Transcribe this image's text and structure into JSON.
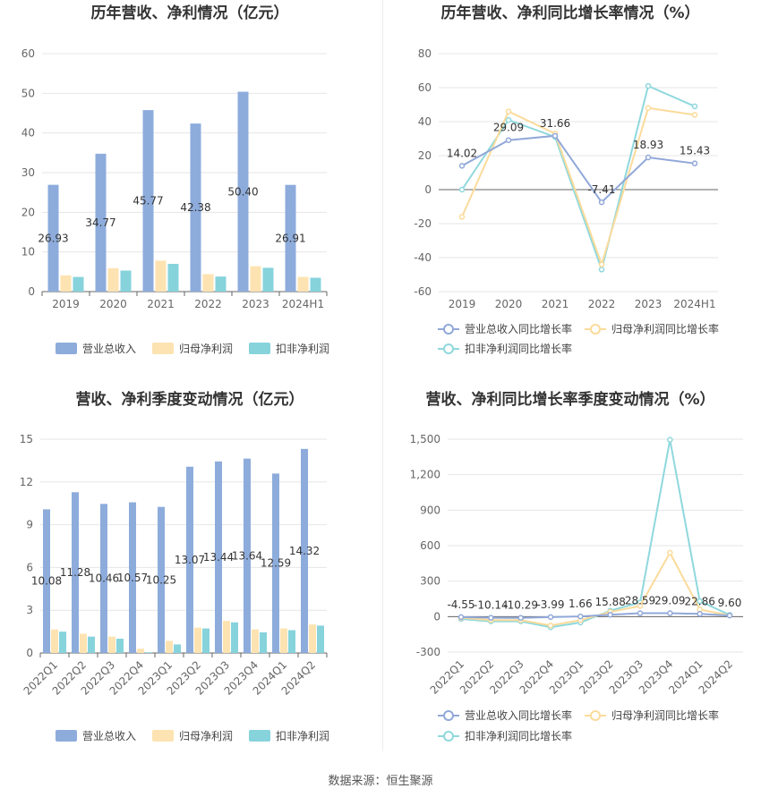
{
  "footer": {
    "source": "数据来源：恒生聚源"
  },
  "colors": {
    "revenue": "#8dacdc",
    "net_profit": "#fde3b1",
    "deducted_profit": "#86d3dc",
    "revenue_line": "#91a8d8",
    "net_profit_line": "#fbdb9b",
    "deducted_profit_line": "#8fd8dd"
  },
  "chart_data": [
    {
      "type": "bar",
      "title": "历年营收、净利情况（亿元）",
      "categories": [
        "2019",
        "2020",
        "2021",
        "2022",
        "2023",
        "2024H1"
      ],
      "series": [
        {
          "name": "营业总收入",
          "values": [
            26.93,
            34.77,
            45.77,
            42.38,
            50.4,
            26.91
          ],
          "labels": [
            "26.93",
            "34.77",
            "45.77",
            "42.38",
            "50.40",
            "26.91"
          ]
        },
        {
          "name": "归母净利润",
          "values": [
            4.1,
            5.9,
            7.8,
            4.4,
            6.4,
            3.7
          ]
        },
        {
          "name": "扣非净利润",
          "values": [
            3.7,
            5.3,
            7.0,
            3.8,
            6.0,
            3.5
          ]
        }
      ],
      "yticks": [
        "0",
        "10",
        "20",
        "30",
        "40",
        "50",
        "60"
      ],
      "ylim": [
        0,
        60
      ],
      "legend": "bottom"
    },
    {
      "type": "line",
      "title": "历年营收、净利同比增长率情况（%）",
      "categories": [
        "2019",
        "2020",
        "2021",
        "2022",
        "2023",
        "2024H1"
      ],
      "series": [
        {
          "name": "营业总收入同比增长率",
          "values": [
            14.02,
            29.09,
            31.66,
            -7.41,
            18.93,
            15.43
          ],
          "labels": [
            "14.02",
            "29.09",
            "31.66",
            "-7.41",
            "18.93",
            "15.43"
          ]
        },
        {
          "name": "归母净利润同比增长率",
          "values": [
            -16,
            46,
            33,
            -44,
            48,
            44
          ]
        },
        {
          "name": "扣非净利润同比增长率",
          "values": [
            0,
            41,
            31,
            -47,
            61,
            49
          ]
        }
      ],
      "yticks": [
        "-60",
        "-40",
        "-20",
        "0",
        "20",
        "40",
        "60",
        "80"
      ],
      "ylim": [
        -60,
        80
      ],
      "legend": "bottom"
    },
    {
      "type": "bar",
      "title": "营收、净利季度变动情况（亿元）",
      "categories": [
        "2022Q1",
        "2022Q2",
        "2022Q3",
        "2022Q4",
        "2023Q1",
        "2023Q2",
        "2023Q3",
        "2023Q4",
        "2024Q1",
        "2024Q2"
      ],
      "series": [
        {
          "name": "营业总收入",
          "values": [
            10.08,
            11.28,
            10.46,
            10.57,
            10.25,
            13.07,
            13.44,
            13.64,
            12.59,
            14.32
          ],
          "labels": [
            "10.08",
            "11.28",
            "10.46",
            "10.57",
            "10.25",
            "13.07",
            "13.44",
            "13.64",
            "12.59",
            "14.32"
          ]
        },
        {
          "name": "归母净利润",
          "values": [
            1.65,
            1.35,
            1.15,
            0.3,
            0.85,
            1.78,
            2.25,
            1.65,
            1.72,
            2.0
          ]
        },
        {
          "name": "扣非净利润",
          "values": [
            1.5,
            1.15,
            1.0,
            0.05,
            0.6,
            1.72,
            2.15,
            1.45,
            1.6,
            1.92
          ]
        }
      ],
      "yticks": [
        "0",
        "3",
        "6",
        "9",
        "12",
        "15"
      ],
      "ylim": [
        0,
        15
      ],
      "legend": "bottom"
    },
    {
      "type": "line",
      "title": "营收、净利同比增长率季度变动情况（%）",
      "categories": [
        "2022Q1",
        "2022Q2",
        "2022Q3",
        "2022Q4",
        "2023Q1",
        "2023Q2",
        "2023Q3",
        "2023Q4",
        "2024Q1",
        "2024Q2"
      ],
      "series": [
        {
          "name": "营业总收入同比增长率",
          "values": [
            -4.55,
            -10.14,
            -10.29,
            -3.99,
            1.66,
            15.88,
            28.59,
            29.09,
            22.86,
            9.6
          ],
          "labels": [
            "-4.55",
            "-10.14",
            "-10.29",
            "-3.99",
            "1.66",
            "15.88",
            "28.59",
            "29.09",
            "22.86",
            "9.60"
          ]
        },
        {
          "name": "归母净利润同比增长率",
          "values": [
            -10,
            -30,
            -30,
            -75,
            -30,
            40,
            90,
            540,
            60,
            10
          ]
        },
        {
          "name": "扣非净利润同比增长率",
          "values": [
            -20,
            -40,
            -40,
            -90,
            -50,
            50,
            120,
            1495,
            130,
            15
          ]
        }
      ],
      "yticks": [
        "-300",
        "0",
        "300",
        "600",
        "900",
        "1,200",
        "1,500"
      ],
      "ylim": [
        -300,
        1500
      ],
      "legend": "bottom"
    }
  ]
}
